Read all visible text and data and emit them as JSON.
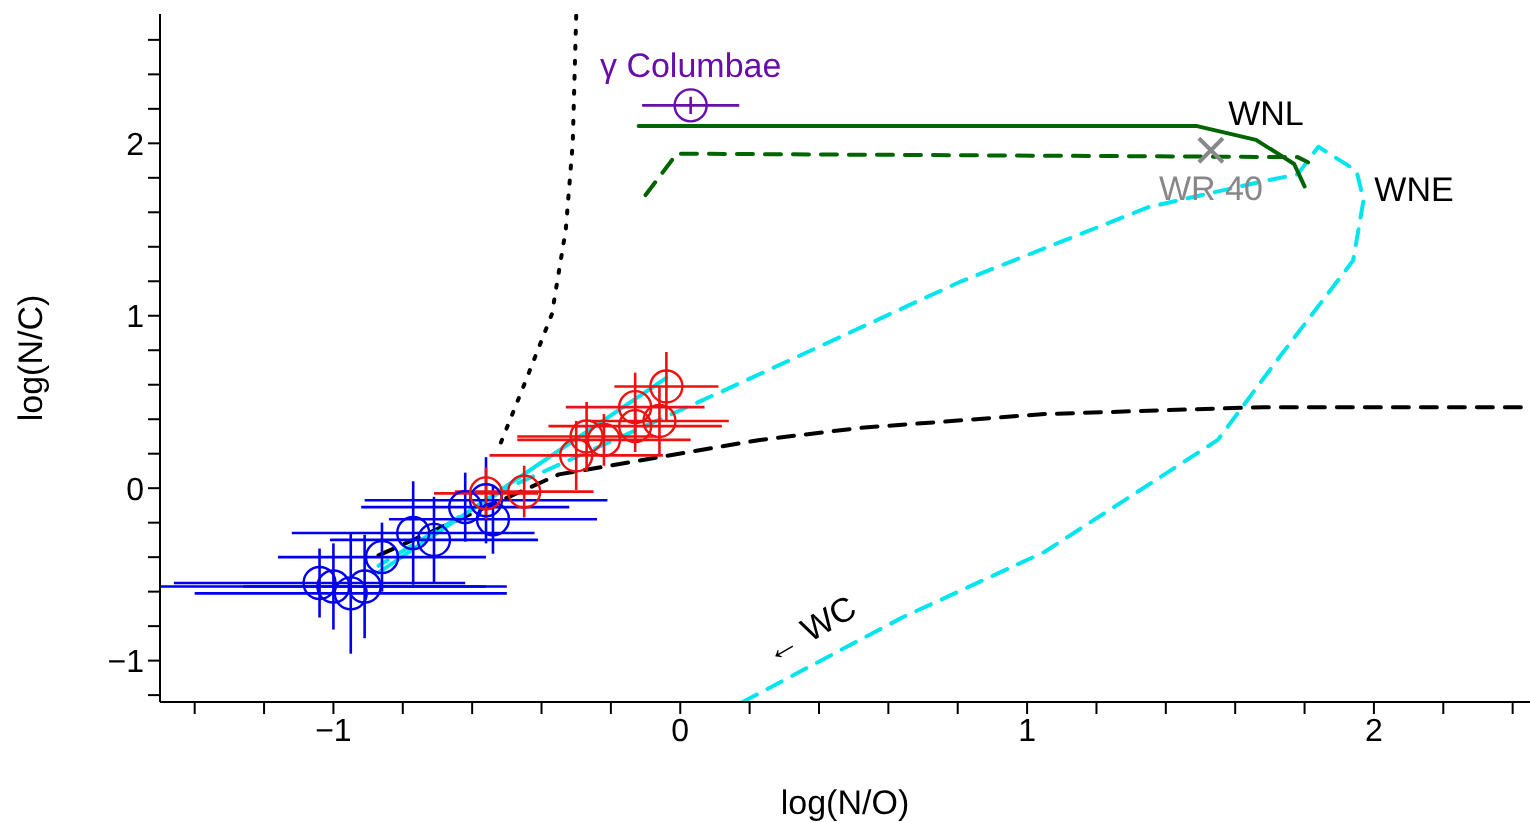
{
  "chart_data": {
    "type": "scatter",
    "xlabel": "log(N/O)",
    "ylabel": "log(N/C)",
    "xlim": [
      -1.5,
      2.45
    ],
    "ylim": [
      -1.24,
      2.75
    ],
    "xticks": [
      {
        "value": -1.4,
        "label": null
      },
      {
        "value": -1.2,
        "label": null
      },
      {
        "value": -1,
        "label": "−1"
      },
      {
        "value": -0.8,
        "label": null
      },
      {
        "value": -0.6,
        "label": null
      },
      {
        "value": -0.4,
        "label": null
      },
      {
        "value": -0.2,
        "label": null
      },
      0,
      {
        "value": 0.2,
        "label": null
      },
      {
        "value": 0.4,
        "label": null
      },
      {
        "value": 0.6,
        "label": null
      },
      {
        "value": 0.8,
        "label": null
      },
      1,
      {
        "value": 1.2,
        "label": null
      },
      {
        "value": 1.4,
        "label": null
      },
      {
        "value": 1.6,
        "label": null
      },
      {
        "value": 1.8,
        "label": null
      },
      2,
      {
        "value": 2.2,
        "label": null
      },
      {
        "value": 2.4,
        "label": null
      }
    ],
    "yticks": [
      {
        "value": -1.2,
        "label": null
      },
      {
        "value": -1,
        "label": "−1"
      },
      {
        "value": -0.8,
        "label": null
      },
      {
        "value": -0.6,
        "label": null
      },
      {
        "value": -0.4,
        "label": null
      },
      {
        "value": -0.2,
        "label": null
      },
      0,
      {
        "value": 0.2,
        "label": null
      },
      {
        "value": 0.4,
        "label": null
      },
      {
        "value": 0.6,
        "label": null
      },
      {
        "value": 0.8,
        "label": null
      },
      1,
      {
        "value": 1.2,
        "label": null
      },
      {
        "value": 1.4,
        "label": null
      },
      {
        "value": 1.6,
        "label": null
      },
      {
        "value": 1.8,
        "label": null
      },
      2,
      {
        "value": 2.2,
        "label": null
      },
      {
        "value": 2.4,
        "label": null
      },
      {
        "value": 2.6,
        "label": null
      }
    ],
    "grid": false,
    "legend": false,
    "series": [
      {
        "type": "line",
        "line_style": "dotted",
        "color": "#000000",
        "x": [
          -0.3,
          -0.31,
          -0.33,
          -0.37,
          -0.45,
          -0.52
        ],
        "values": [
          2.74,
          2.0,
          1.5,
          1.01,
          0.6,
          0.25
        ]
      },
      {
        "type": "line",
        "line_style": "dashed",
        "color": "#000000",
        "x": [
          -0.87,
          -0.35,
          0.23,
          0.52,
          1.05,
          1.68,
          2.45
        ],
        "values": [
          -0.39,
          0.08,
          0.28,
          0.35,
          0.43,
          0.47,
          0.47
        ]
      },
      {
        "type": "line",
        "line_style": "dashed",
        "color": "#00e5ee",
        "x": [
          0.18,
          0.64,
          1.05,
          1.55,
          1.72,
          1.94,
          1.97,
          1.95,
          1.84,
          1.78,
          1.68,
          1.35,
          0.81,
          0.13,
          -0.5,
          -0.87
        ],
        "values": [
          -1.24,
          -0.75,
          -0.37,
          0.28,
          0.74,
          1.32,
          1.67,
          1.84,
          1.98,
          1.82,
          1.78,
          1.63,
          1.2,
          0.57,
          0.0,
          -0.45
        ]
      },
      {
        "type": "line",
        "line_style": "solid",
        "color": "#00e5ee",
        "x": [
          -0.87,
          -0.04
        ],
        "values": [
          -0.49,
          0.64
        ]
      },
      {
        "type": "line",
        "line_style": "solid",
        "color": "#006400",
        "x": [
          -0.12,
          1.49,
          1.66,
          1.77,
          1.8
        ],
        "values": [
          2.1,
          2.1,
          2.02,
          1.88,
          1.75
        ]
      },
      {
        "type": "line",
        "line_style": "dashed",
        "color": "#006400",
        "x": [
          -0.1,
          -0.01,
          1.78,
          1.81
        ],
        "values": [
          1.7,
          1.94,
          1.92,
          1.89
        ]
      },
      {
        "marker": "circle",
        "color": "#0000ee",
        "x": [
          -1.04,
          -0.95,
          -1.0,
          -0.91,
          -0.86,
          -0.77,
          -0.71,
          -0.62,
          -0.56,
          -0.54
        ],
        "values": [
          -0.55,
          -0.61,
          -0.57,
          -0.57,
          -0.4,
          -0.26,
          -0.3,
          -0.11,
          -0.07,
          -0.18
        ],
        "errors": [
          0.2,
          0.35,
          0.25,
          0.3,
          0.2,
          0.3,
          0.25,
          0.2,
          0.25,
          0.2
        ],
        "xerrors": [
          0.42,
          0.45,
          0.5,
          0.35,
          0.3,
          0.35,
          0.3,
          0.3,
          0.35,
          0.3
        ]
      },
      {
        "marker": "circle",
        "color": "#ee1111",
        "x": [
          -0.56,
          -0.45,
          -0.3,
          -0.27,
          -0.22,
          -0.13,
          -0.13,
          -0.06,
          -0.04
        ],
        "values": [
          -0.03,
          -0.02,
          0.19,
          0.3,
          0.28,
          0.47,
          0.36,
          0.39,
          0.59
        ],
        "errors": [
          0.15,
          0.15,
          0.2,
          0.2,
          0.15,
          0.2,
          0.15,
          0.2,
          0.2
        ],
        "xerrors": [
          0.15,
          0.2,
          0.25,
          0.2,
          0.25,
          0.2,
          0.25,
          0.2,
          0.15
        ]
      },
      {
        "marker": "circle",
        "name": "γ Columbae",
        "color": "#6a0dad",
        "x": [
          0.03
        ],
        "values": [
          2.22
        ],
        "errors": [
          0.05
        ],
        "xerrors": [
          0.14
        ]
      },
      {
        "marker": "cross",
        "name": "WR 40",
        "color": "#888888",
        "x": [
          1.53
        ],
        "values": [
          1.96
        ]
      }
    ],
    "annotations": [
      "WNL",
      "WNE",
      "← WC"
    ]
  }
}
